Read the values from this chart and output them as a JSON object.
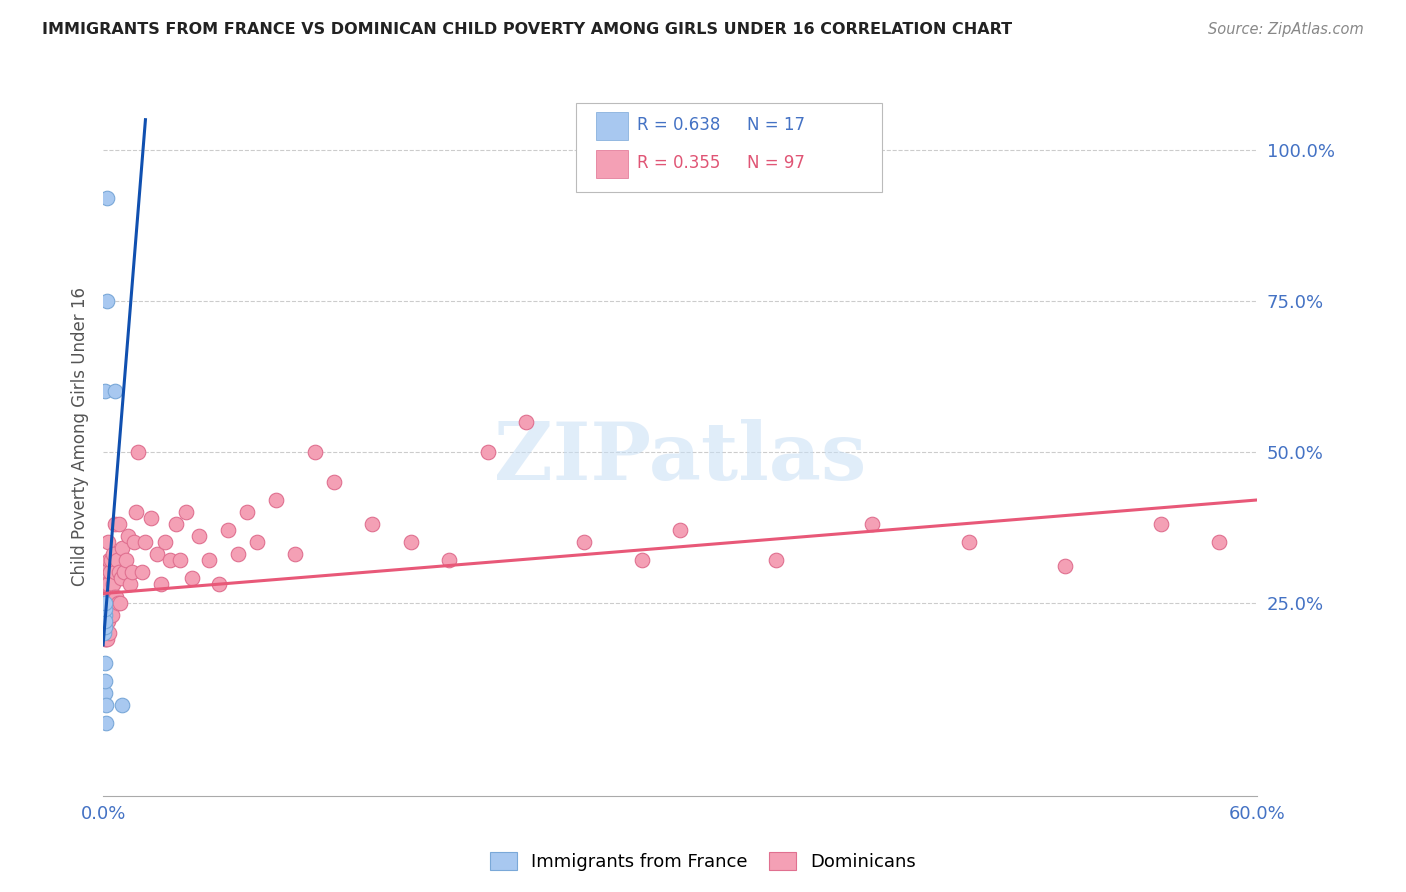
{
  "title": "IMMIGRANTS FROM FRANCE VS DOMINICAN CHILD POVERTY AMONG GIRLS UNDER 16 CORRELATION CHART",
  "source": "Source: ZipAtlas.com",
  "ylabel": "Child Poverty Among Girls Under 16",
  "right_yticks": [
    "100.0%",
    "75.0%",
    "50.0%",
    "25.0%"
  ],
  "right_ytick_vals": [
    1.0,
    0.75,
    0.5,
    0.25
  ],
  "xlim": [
    0.0,
    0.6
  ],
  "ylim": [
    -0.07,
    1.12
  ],
  "legend_label_blue": "Immigrants from France",
  "legend_label_pink": "Dominicans",
  "blue_color": "#a8c8f0",
  "pink_color": "#f4a0b5",
  "blue_edge_color": "#7aa8d8",
  "pink_edge_color": "#e07090",
  "blue_line_color": "#1050b0",
  "pink_line_color": "#e85878",
  "watermark": "ZIPatlas",
  "blue_scatter_x": [
    0.0005,
    0.0005,
    0.0008,
    0.0008,
    0.001,
    0.001,
    0.001,
    0.001,
    0.001,
    0.0012,
    0.0012,
    0.0015,
    0.0015,
    0.0018,
    0.002,
    0.006,
    0.01
  ],
  "blue_scatter_y": [
    0.2,
    0.22,
    0.21,
    0.23,
    0.22,
    0.24,
    0.25,
    0.6,
    0.15,
    0.1,
    0.12,
    0.05,
    0.08,
    0.75,
    0.92,
    0.6,
    0.08
  ],
  "pink_scatter_x": [
    0.0005,
    0.0005,
    0.0008,
    0.001,
    0.001,
    0.001,
    0.0012,
    0.0012,
    0.0015,
    0.0015,
    0.0015,
    0.0018,
    0.0018,
    0.002,
    0.002,
    0.002,
    0.0025,
    0.0025,
    0.0025,
    0.003,
    0.003,
    0.003,
    0.0035,
    0.0035,
    0.004,
    0.004,
    0.0045,
    0.005,
    0.005,
    0.0055,
    0.006,
    0.006,
    0.0065,
    0.007,
    0.0075,
    0.008,
    0.0085,
    0.009,
    0.0095,
    0.01,
    0.011,
    0.012,
    0.013,
    0.014,
    0.015,
    0.016,
    0.017,
    0.018,
    0.02,
    0.022,
    0.025,
    0.028,
    0.03,
    0.032,
    0.035,
    0.038,
    0.04,
    0.043,
    0.046,
    0.05,
    0.055,
    0.06,
    0.065,
    0.07,
    0.075,
    0.08,
    0.09,
    0.1,
    0.11,
    0.12,
    0.14,
    0.16,
    0.18,
    0.2,
    0.22,
    0.25,
    0.28,
    0.3,
    0.35,
    0.4,
    0.45,
    0.5,
    0.55,
    0.58
  ],
  "pink_scatter_y": [
    0.2,
    0.23,
    0.19,
    0.22,
    0.25,
    0.3,
    0.21,
    0.27,
    0.19,
    0.23,
    0.28,
    0.2,
    0.25,
    0.19,
    0.22,
    0.26,
    0.22,
    0.28,
    0.35,
    0.2,
    0.26,
    0.32,
    0.25,
    0.3,
    0.25,
    0.32,
    0.23,
    0.28,
    0.33,
    0.26,
    0.3,
    0.38,
    0.26,
    0.32,
    0.25,
    0.3,
    0.38,
    0.25,
    0.29,
    0.34,
    0.3,
    0.32,
    0.36,
    0.28,
    0.3,
    0.35,
    0.4,
    0.5,
    0.3,
    0.35,
    0.39,
    0.33,
    0.28,
    0.35,
    0.32,
    0.38,
    0.32,
    0.4,
    0.29,
    0.36,
    0.32,
    0.28,
    0.37,
    0.33,
    0.4,
    0.35,
    0.42,
    0.33,
    0.5,
    0.45,
    0.38,
    0.35,
    0.32,
    0.5,
    0.55,
    0.35,
    0.32,
    0.37,
    0.32,
    0.38,
    0.35,
    0.31,
    0.38,
    0.35
  ],
  "blue_trendline_x": [
    0.0,
    0.022
  ],
  "blue_trendline_y": [
    0.18,
    1.05
  ],
  "pink_trendline_x": [
    0.0,
    0.6
  ],
  "pink_trendline_y": [
    0.265,
    0.42
  ]
}
